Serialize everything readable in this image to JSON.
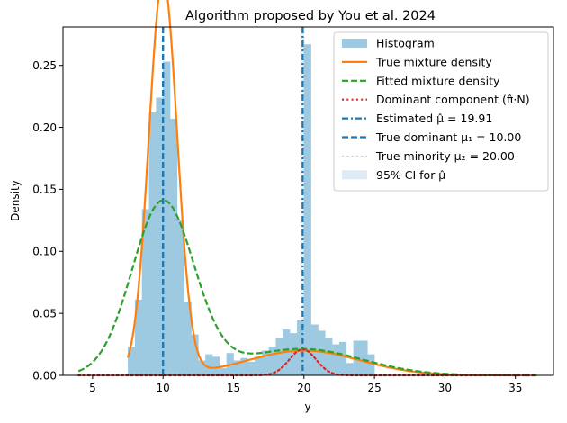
{
  "chart_data": {
    "type": "histogram",
    "title": "Algorithm proposed by You et al. 2024",
    "xlabel": "y",
    "ylabel": "Density",
    "xlim": [
      2.9,
      37.7
    ],
    "ylim": [
      0,
      0.281
    ],
    "xticks": [
      5,
      10,
      15,
      20,
      25,
      30,
      35
    ],
    "yticks": [
      0.0,
      0.05,
      0.1,
      0.15,
      0.2,
      0.25
    ],
    "ytick_labels": [
      "0.00",
      "0.05",
      "0.10",
      "0.15",
      "0.20",
      "0.25"
    ],
    "grid": false,
    "legend_position": "top-right",
    "histogram": {
      "name": "Histogram",
      "color": "#9ecae1",
      "bin_width": 0.5,
      "bins": [
        [
          7.5,
          0.023
        ],
        [
          8.0,
          0.061
        ],
        [
          8.5,
          0.134
        ],
        [
          9.0,
          0.212
        ],
        [
          9.5,
          0.224
        ],
        [
          10.0,
          0.253
        ],
        [
          10.5,
          0.207
        ],
        [
          11.0,
          0.125
        ],
        [
          11.5,
          0.059
        ],
        [
          12.0,
          0.033
        ],
        [
          12.5,
          0.012
        ],
        [
          13.0,
          0.017
        ],
        [
          13.5,
          0.015
        ],
        [
          14.0,
          0.006
        ],
        [
          14.5,
          0.018
        ],
        [
          15.0,
          0.012
        ],
        [
          15.5,
          0.014
        ],
        [
          16.0,
          0.011
        ],
        [
          16.5,
          0.015
        ],
        [
          17.0,
          0.02
        ],
        [
          17.5,
          0.023
        ],
        [
          18.0,
          0.03
        ],
        [
          18.5,
          0.037
        ],
        [
          19.0,
          0.034
        ],
        [
          19.5,
          0.045
        ],
        [
          20.0,
          0.267
        ],
        [
          20.5,
          0.041
        ],
        [
          21.0,
          0.036
        ],
        [
          21.5,
          0.03
        ],
        [
          22.0,
          0.025
        ],
        [
          22.5,
          0.027
        ],
        [
          23.0,
          0.01
        ],
        [
          23.5,
          0.028
        ],
        [
          24.0,
          0.028
        ],
        [
          24.5,
          0.017
        ]
      ]
    },
    "curves": [
      {
        "name": "True mixture density",
        "color": "#ff7f0e",
        "style": "solid",
        "components": [
          {
            "w": 0.8,
            "mu": 10.0,
            "sigma": 1.0
          },
          {
            "w": 0.2,
            "mu": 20.0,
            "sigma": 4.0
          }
        ],
        "x_range": [
          7.5,
          32.5
        ]
      },
      {
        "name": "Fitted mixture density",
        "color": "#2ca02c",
        "style": "dashed",
        "components": [
          {
            "w": 0.77,
            "mu": 10.0,
            "sigma": 2.2
          },
          {
            "w": 0.23,
            "mu": 19.8,
            "sigma": 4.3
          }
        ],
        "x_range": [
          4.0,
          36.5
        ]
      },
      {
        "name": "Dominant component (π̂·N)",
        "color": "#d62728",
        "style": "dotted",
        "components": [
          {
            "w": 0.05,
            "mu": 19.91,
            "sigma": 0.95
          }
        ],
        "x_range": [
          4.0,
          36.5
        ]
      }
    ],
    "vlines": [
      {
        "name": "Estimated μ̂ = 19.91",
        "x": 19.91,
        "color": "#1f77b4",
        "style": "dashdot"
      },
      {
        "name": "True dominant μ₁ = 10.00",
        "x": 10.0,
        "color": "#1f77b4",
        "style": "dashed"
      },
      {
        "name": "True minority μ₂ = 20.00",
        "x": 20.0,
        "color": "#9ecae1",
        "style": "dotted"
      }
    ],
    "ci_band": {
      "name": "95% CI for μ̂",
      "lower": 19.83,
      "upper": 19.99,
      "color": "#deebf7"
    }
  }
}
